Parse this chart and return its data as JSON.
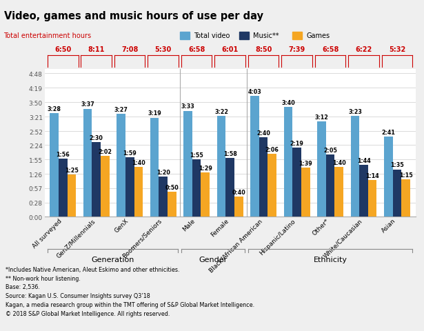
{
  "title": "Video, games and music hours of use per day",
  "categories": [
    "All surveyed",
    "GenZ/Millennials",
    "GenX",
    "Boomers/Seniors",
    "Male",
    "Female",
    "Black/African American",
    "Hispanic/Latino",
    "Other*",
    "White/Caucasian",
    "Asian"
  ],
  "total_hours": [
    "6:50",
    "8:11",
    "7:08",
    "5:30",
    "6:58",
    "6:01",
    "8:50",
    "7:39",
    "6:58",
    "6:22",
    "5:32"
  ],
  "video": [
    3.467,
    3.617,
    3.45,
    3.317,
    3.55,
    3.367,
    4.05,
    3.667,
    3.2,
    3.383,
    2.683
  ],
  "music": [
    1.933,
    2.5,
    1.983,
    1.333,
    1.917,
    1.967,
    2.667,
    2.317,
    2.083,
    1.733,
    1.583
  ],
  "games": [
    1.417,
    2.033,
    1.667,
    0.833,
    1.483,
    0.667,
    2.1,
    1.65,
    1.667,
    1.233,
    1.25
  ],
  "video_labels": [
    "3:28",
    "3:37",
    "3:27",
    "3:19",
    "3:33",
    "3:22",
    "4:03",
    "3:40",
    "3:12",
    "3:23",
    "2:41"
  ],
  "music_labels": [
    "1:56",
    "2:30",
    "1:59",
    "1:20",
    "1:55",
    "1:58",
    "2:40",
    "2:19",
    "2:05",
    "1:44",
    "1:35"
  ],
  "games_labels": [
    "1:25",
    "2:02",
    "1:40",
    "0:50",
    "1:29",
    "0:40",
    "2:06",
    "1:39",
    "1:40",
    "1:14",
    "1:15"
  ],
  "color_video": "#5BA4CF",
  "color_music": "#1F3864",
  "color_games": "#F5A623",
  "bg_color": "#EFEFEF",
  "plot_bg": "#FFFFFF",
  "red_color": "#CC0000",
  "yticks": [
    "0:00",
    "0:28",
    "0:57",
    "1:26",
    "1:55",
    "2:24",
    "2:52",
    "3:21",
    "3:50",
    "4:19",
    "4:48"
  ],
  "ytick_vals": [
    0,
    0.467,
    0.95,
    1.433,
    1.917,
    2.4,
    2.867,
    3.35,
    3.833,
    4.317,
    4.8
  ],
  "group_info": [
    {
      "label": "Generation",
      "start": 0,
      "end": 3
    },
    {
      "label": "Gender",
      "start": 4,
      "end": 5
    },
    {
      "label": "Ethnicity",
      "start": 6,
      "end": 10
    }
  ],
  "footnote": "*Includes Native American, Aleut Eskimo and other ethnicities.\n** Non-work hour listening.\nBase: 2,536.\nSource: Kagan U.S. Consumer Insights survey Q3’18\nKagan, a media research group within the TMT offering of S&P Global Market Intelligence.\n© 2018 S&P Global Market Intelligence. All rights reserved."
}
